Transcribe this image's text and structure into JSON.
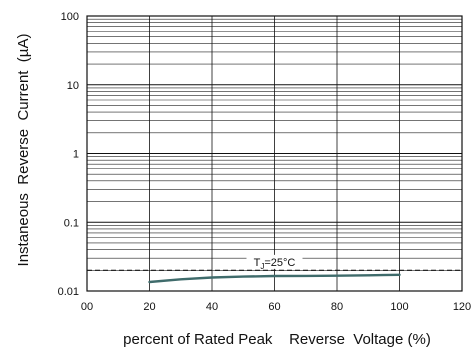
{
  "chart_data": {
    "type": "line",
    "title": "",
    "xlabel": "percent of Rated Peak    Reverse  Voltage (%)",
    "ylabel": "Instaneous  Reverse  Current  (µA)",
    "xlim": [
      0,
      120
    ],
    "ylim": [
      0.01,
      100
    ],
    "y_scale": "log",
    "grid": true,
    "x_ticks": [
      {
        "value": 0,
        "label": "00"
      },
      {
        "value": 20,
        "label": "20"
      },
      {
        "value": 40,
        "label": "40"
      },
      {
        "value": 60,
        "label": "60"
      },
      {
        "value": 80,
        "label": "80"
      },
      {
        "value": 100,
        "label": "100"
      },
      {
        "value": 120,
        "label": "120"
      }
    ],
    "y_ticks": [
      {
        "value": 0.01,
        "label": "0.01"
      },
      {
        "value": 0.1,
        "label": "0.1"
      },
      {
        "value": 1,
        "label": "1"
      },
      {
        "value": 10,
        "label": "10"
      },
      {
        "value": 100,
        "label": "100"
      }
    ],
    "series": [
      {
        "color": "#3f6b6b",
        "x": [
          20,
          30,
          40,
          50,
          60,
          70,
          80,
          90,
          100
        ],
        "y": [
          0.0135,
          0.0148,
          0.0157,
          0.0162,
          0.0165,
          0.0166,
          0.0167,
          0.0169,
          0.0172
        ]
      }
    ],
    "reference_line": {
      "y": 0.02,
      "x_from": 0,
      "x_to": 120
    },
    "annotation": {
      "base": "T",
      "sub": "J",
      "rest": "=25°C",
      "x": 60,
      "y": 0.024
    }
  }
}
